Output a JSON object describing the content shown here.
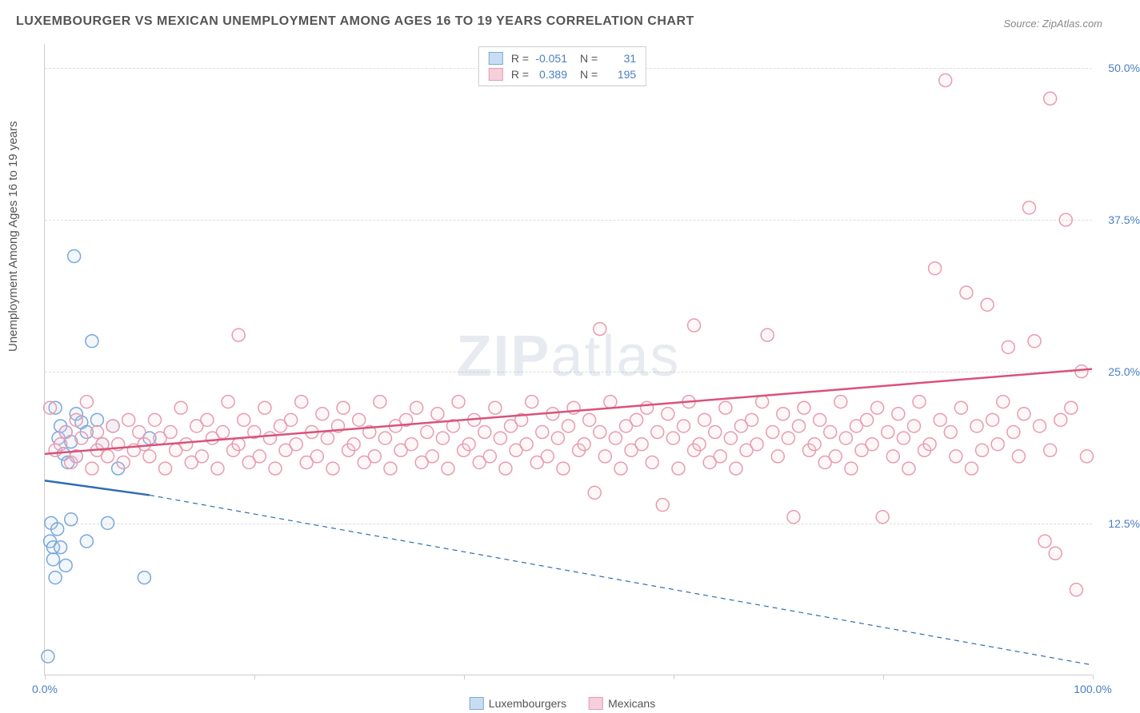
{
  "title": "LUXEMBOURGER VS MEXICAN UNEMPLOYMENT AMONG AGES 16 TO 19 YEARS CORRELATION CHART",
  "source": "Source: ZipAtlas.com",
  "ylabel": "Unemployment Among Ages 16 to 19 years",
  "watermark_a": "ZIP",
  "watermark_b": "atlas",
  "chart": {
    "type": "scatter",
    "xlim": [
      0,
      100
    ],
    "ylim": [
      0,
      52
    ],
    "xticks": [
      0,
      20,
      40,
      60,
      80,
      100
    ],
    "xtick_labels_shown": {
      "0": "0.0%",
      "100": "100.0%"
    },
    "yticks": [
      12.5,
      25.0,
      37.5,
      50.0
    ],
    "ytick_labels": [
      "12.5%",
      "25.0%",
      "37.5%",
      "50.0%"
    ],
    "grid_color": "#dddddd",
    "axis_color": "#cccccc",
    "background": "#ffffff",
    "marker_radius": 8,
    "series": [
      {
        "name": "Luxembourgers",
        "color_stroke": "#7aa8d9",
        "color_fill": "#a8c8e8",
        "R": "-0.051",
        "N": "31",
        "trend": {
          "x1": 0,
          "y1": 16.0,
          "x2": 10,
          "y2": 14.8,
          "x_ext": 100,
          "y_ext": 0.8,
          "color": "#2f6db3",
          "width": 2.5
        },
        "points": [
          [
            0.3,
            1.5
          ],
          [
            0.5,
            11.0
          ],
          [
            0.6,
            12.5
          ],
          [
            0.8,
            9.5
          ],
          [
            0.8,
            10.5
          ],
          [
            1.0,
            8.0
          ],
          [
            1.0,
            22.0
          ],
          [
            1.2,
            12.0
          ],
          [
            1.3,
            19.5
          ],
          [
            1.5,
            20.5
          ],
          [
            1.5,
            10.5
          ],
          [
            1.8,
            18.2
          ],
          [
            2.0,
            20.0
          ],
          [
            2.0,
            9.0
          ],
          [
            2.2,
            17.5
          ],
          [
            2.5,
            12.8
          ],
          [
            2.5,
            19.2
          ],
          [
            2.8,
            34.5
          ],
          [
            3.0,
            18.0
          ],
          [
            3.0,
            21.5
          ],
          [
            3.5,
            20.8
          ],
          [
            4.0,
            20.0
          ],
          [
            4.0,
            11.0
          ],
          [
            4.5,
            27.5
          ],
          [
            5.0,
            21.0
          ],
          [
            5.5,
            19.0
          ],
          [
            6.0,
            12.5
          ],
          [
            6.5,
            20.5
          ],
          [
            7.0,
            17.0
          ],
          [
            9.5,
            8.0
          ],
          [
            10.0,
            19.5
          ]
        ]
      },
      {
        "name": "Mexicans",
        "color_stroke": "#e89bb0",
        "color_fill": "#f5c6d3",
        "R": "0.389",
        "N": "195",
        "trend": {
          "x1": 0,
          "y1": 18.2,
          "x2": 100,
          "y2": 25.2,
          "color": "#d9527a",
          "width": 2.5
        },
        "points": [
          [
            0.5,
            22.0
          ],
          [
            1.0,
            18.5
          ],
          [
            1.5,
            19.0
          ],
          [
            2.0,
            20.0
          ],
          [
            2.5,
            17.5
          ],
          [
            3.0,
            21.0
          ],
          [
            3.0,
            18.0
          ],
          [
            3.5,
            19.5
          ],
          [
            4.0,
            22.5
          ],
          [
            4.5,
            17.0
          ],
          [
            5.0,
            20.0
          ],
          [
            5.0,
            18.5
          ],
          [
            5.5,
            19.0
          ],
          [
            6.0,
            18.0
          ],
          [
            6.5,
            20.5
          ],
          [
            7.0,
            19.0
          ],
          [
            7.5,
            17.5
          ],
          [
            8.0,
            21.0
          ],
          [
            8.5,
            18.5
          ],
          [
            9.0,
            20.0
          ],
          [
            9.5,
            19.0
          ],
          [
            10.0,
            18.0
          ],
          [
            10.5,
            21.0
          ],
          [
            11.0,
            19.5
          ],
          [
            11.5,
            17.0
          ],
          [
            12.0,
            20.0
          ],
          [
            12.5,
            18.5
          ],
          [
            13.0,
            22.0
          ],
          [
            13.5,
            19.0
          ],
          [
            14.0,
            17.5
          ],
          [
            14.5,
            20.5
          ],
          [
            15.0,
            18.0
          ],
          [
            15.5,
            21.0
          ],
          [
            16.0,
            19.5
          ],
          [
            16.5,
            17.0
          ],
          [
            17.0,
            20.0
          ],
          [
            17.5,
            22.5
          ],
          [
            18.0,
            18.5
          ],
          [
            18.5,
            19.0
          ],
          [
            18.5,
            28.0
          ],
          [
            19.0,
            21.0
          ],
          [
            19.5,
            17.5
          ],
          [
            20.0,
            20.0
          ],
          [
            20.5,
            18.0
          ],
          [
            21.0,
            22.0
          ],
          [
            21.5,
            19.5
          ],
          [
            22.0,
            17.0
          ],
          [
            22.5,
            20.5
          ],
          [
            23.0,
            18.5
          ],
          [
            23.5,
            21.0
          ],
          [
            24.0,
            19.0
          ],
          [
            24.5,
            22.5
          ],
          [
            25.0,
            17.5
          ],
          [
            25.5,
            20.0
          ],
          [
            26.0,
            18.0
          ],
          [
            26.5,
            21.5
          ],
          [
            27.0,
            19.5
          ],
          [
            27.5,
            17.0
          ],
          [
            28.0,
            20.5
          ],
          [
            28.5,
            22.0
          ],
          [
            29.0,
            18.5
          ],
          [
            29.5,
            19.0
          ],
          [
            30.0,
            21.0
          ],
          [
            30.5,
            17.5
          ],
          [
            31.0,
            20.0
          ],
          [
            31.5,
            18.0
          ],
          [
            32.0,
            22.5
          ],
          [
            32.5,
            19.5
          ],
          [
            33.0,
            17.0
          ],
          [
            33.5,
            20.5
          ],
          [
            34.0,
            18.5
          ],
          [
            34.5,
            21.0
          ],
          [
            35.0,
            19.0
          ],
          [
            35.5,
            22.0
          ],
          [
            36.0,
            17.5
          ],
          [
            36.5,
            20.0
          ],
          [
            37.0,
            18.0
          ],
          [
            37.5,
            21.5
          ],
          [
            38.0,
            19.5
          ],
          [
            38.5,
            17.0
          ],
          [
            39.0,
            20.5
          ],
          [
            39.5,
            22.5
          ],
          [
            40.0,
            18.5
          ],
          [
            40.5,
            19.0
          ],
          [
            41.0,
            21.0
          ],
          [
            41.5,
            17.5
          ],
          [
            42.0,
            20.0
          ],
          [
            42.5,
            18.0
          ],
          [
            43.0,
            22.0
          ],
          [
            43.5,
            19.5
          ],
          [
            44.0,
            17.0
          ],
          [
            44.5,
            20.5
          ],
          [
            45.0,
            18.5
          ],
          [
            45.5,
            21.0
          ],
          [
            46.0,
            19.0
          ],
          [
            46.5,
            22.5
          ],
          [
            47.0,
            17.5
          ],
          [
            47.5,
            20.0
          ],
          [
            48.0,
            18.0
          ],
          [
            48.5,
            21.5
          ],
          [
            49.0,
            19.5
          ],
          [
            49.5,
            17.0
          ],
          [
            50.0,
            20.5
          ],
          [
            50.5,
            22.0
          ],
          [
            51.0,
            18.5
          ],
          [
            51.5,
            19.0
          ],
          [
            52.0,
            21.0
          ],
          [
            52.5,
            15.0
          ],
          [
            53.0,
            20.0
          ],
          [
            53.0,
            28.5
          ],
          [
            53.5,
            18.0
          ],
          [
            54.0,
            22.5
          ],
          [
            54.5,
            19.5
          ],
          [
            55.0,
            17.0
          ],
          [
            55.5,
            20.5
          ],
          [
            56.0,
            18.5
          ],
          [
            56.5,
            21.0
          ],
          [
            57.0,
            19.0
          ],
          [
            57.5,
            22.0
          ],
          [
            58.0,
            17.5
          ],
          [
            58.5,
            20.0
          ],
          [
            59.0,
            14.0
          ],
          [
            59.5,
            21.5
          ],
          [
            60.0,
            19.5
          ],
          [
            60.5,
            17.0
          ],
          [
            61.0,
            20.5
          ],
          [
            61.5,
            22.5
          ],
          [
            62.0,
            18.5
          ],
          [
            62.0,
            28.8
          ],
          [
            62.5,
            19.0
          ],
          [
            63.0,
            21.0
          ],
          [
            63.5,
            17.5
          ],
          [
            64.0,
            20.0
          ],
          [
            64.5,
            18.0
          ],
          [
            65.0,
            22.0
          ],
          [
            65.5,
            19.5
          ],
          [
            66.0,
            17.0
          ],
          [
            66.5,
            20.5
          ],
          [
            67.0,
            18.5
          ],
          [
            67.5,
            21.0
          ],
          [
            68.0,
            19.0
          ],
          [
            68.5,
            22.5
          ],
          [
            69.0,
            28.0
          ],
          [
            69.5,
            20.0
          ],
          [
            70.0,
            18.0
          ],
          [
            70.5,
            21.5
          ],
          [
            71.0,
            19.5
          ],
          [
            71.5,
            13.0
          ],
          [
            72.0,
            20.5
          ],
          [
            72.5,
            22.0
          ],
          [
            73.0,
            18.5
          ],
          [
            73.5,
            19.0
          ],
          [
            74.0,
            21.0
          ],
          [
            74.5,
            17.5
          ],
          [
            75.0,
            20.0
          ],
          [
            75.5,
            18.0
          ],
          [
            76.0,
            22.5
          ],
          [
            76.5,
            19.5
          ],
          [
            77.0,
            17.0
          ],
          [
            77.5,
            20.5
          ],
          [
            78.0,
            18.5
          ],
          [
            78.5,
            21.0
          ],
          [
            79.0,
            19.0
          ],
          [
            79.5,
            22.0
          ],
          [
            80.0,
            13.0
          ],
          [
            80.5,
            20.0
          ],
          [
            81.0,
            18.0
          ],
          [
            81.5,
            21.5
          ],
          [
            82.0,
            19.5
          ],
          [
            82.5,
            17.0
          ],
          [
            83.0,
            20.5
          ],
          [
            83.5,
            22.5
          ],
          [
            84.0,
            18.5
          ],
          [
            84.5,
            19.0
          ],
          [
            85.0,
            33.5
          ],
          [
            85.5,
            21.0
          ],
          [
            86.0,
            49.0
          ],
          [
            86.5,
            20.0
          ],
          [
            87.0,
            18.0
          ],
          [
            87.5,
            22.0
          ],
          [
            88.0,
            31.5
          ],
          [
            88.5,
            17.0
          ],
          [
            89.0,
            20.5
          ],
          [
            89.5,
            18.5
          ],
          [
            90.0,
            30.5
          ],
          [
            90.5,
            21.0
          ],
          [
            91.0,
            19.0
          ],
          [
            91.5,
            22.5
          ],
          [
            92.0,
            27.0
          ],
          [
            92.5,
            20.0
          ],
          [
            93.0,
            18.0
          ],
          [
            93.5,
            21.5
          ],
          [
            94.0,
            38.5
          ],
          [
            94.5,
            27.5
          ],
          [
            95.0,
            20.5
          ],
          [
            95.5,
            11.0
          ],
          [
            96.0,
            18.5
          ],
          [
            96.0,
            47.5
          ],
          [
            96.5,
            10.0
          ],
          [
            97.0,
            21.0
          ],
          [
            97.5,
            37.5
          ],
          [
            98.0,
            22.0
          ],
          [
            98.5,
            7.0
          ],
          [
            99.0,
            25.0
          ],
          [
            99.5,
            18.0
          ]
        ]
      }
    ]
  },
  "stats_box": {
    "rows": [
      {
        "swatch_fill": "#c9ddf2",
        "swatch_stroke": "#7aa8d9",
        "R": "-0.051",
        "N": "31"
      },
      {
        "swatch_fill": "#f5d0db",
        "swatch_stroke": "#e89bb0",
        "R": "0.389",
        "N": "195"
      }
    ]
  },
  "legend": {
    "items": [
      {
        "swatch_fill": "#c9ddf2",
        "swatch_stroke": "#7aa8d9",
        "label": "Luxembourgers"
      },
      {
        "swatch_fill": "#f5d0db",
        "swatch_stroke": "#e89bb0",
        "label": "Mexicans"
      }
    ]
  }
}
